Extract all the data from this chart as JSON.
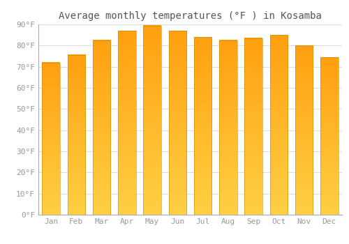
{
  "title": "Average monthly temperatures (°F ) in Kosamba",
  "months": [
    "Jan",
    "Feb",
    "Mar",
    "Apr",
    "May",
    "Jun",
    "Jul",
    "Aug",
    "Sep",
    "Oct",
    "Nov",
    "Dec"
  ],
  "values": [
    72,
    75.5,
    82.5,
    87,
    89.5,
    87,
    84,
    82.5,
    83.5,
    85,
    80,
    74.5
  ],
  "bar_color_bottom": "#FFD045",
  "bar_color_top": "#FFA010",
  "bar_edge_color": "#CC8800",
  "ylim": [
    0,
    90
  ],
  "yticks": [
    0,
    10,
    20,
    30,
    40,
    50,
    60,
    70,
    80,
    90
  ],
  "ytick_labels": [
    "0°F",
    "10°F",
    "20°F",
    "30°F",
    "40°F",
    "50°F",
    "60°F",
    "70°F",
    "80°F",
    "90°F"
  ],
  "background_color": "#FFFFFF",
  "grid_color": "#DDDDDD",
  "title_fontsize": 10,
  "tick_fontsize": 8,
  "tick_color": "#999999",
  "bar_width": 0.7
}
